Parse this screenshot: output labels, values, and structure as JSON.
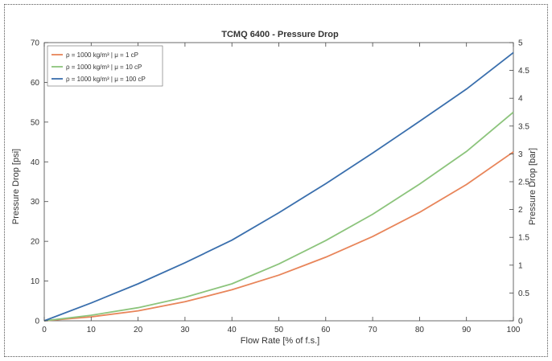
{
  "chart_data": {
    "type": "line",
    "title": "TCMQ 6400 - Pressure Drop",
    "xlabel": "Flow Rate [% of f.s.]",
    "ylabel": "Pressure Drop [psi]",
    "ylabel_right": "Pressure Drop [bar]",
    "xlim": [
      0,
      100
    ],
    "ylim": [
      0,
      70
    ],
    "ylim_right": [
      0,
      5
    ],
    "x_ticks": [
      "0",
      "10",
      "20",
      "30",
      "40",
      "50",
      "60",
      "70",
      "80",
      "90",
      "100"
    ],
    "y_ticks": [
      "0",
      "10",
      "20",
      "30",
      "40",
      "50",
      "60",
      "70"
    ],
    "y_ticks_right": [
      "0",
      "0.5",
      "1",
      "1.5",
      "2",
      "2.5",
      "3",
      "3.5",
      "4",
      "4.5",
      "5"
    ],
    "legend_position": "top-left",
    "x": [
      0,
      10,
      20,
      30,
      40,
      50,
      60,
      70,
      80,
      90,
      100
    ],
    "series": [
      {
        "name": "ρ = 1000 kg/m³ | μ = 1 cP",
        "color": "#e8855a",
        "values": [
          0,
          1,
          2.5,
          4.8,
          7.8,
          11.5,
          16,
          21.2,
          27.3,
          34.3,
          42.5
        ]
      },
      {
        "name": "ρ = 1000 kg/m³ | μ = 10 cP",
        "color": "#8cc47c",
        "values": [
          0,
          1.4,
          3.3,
          5.9,
          9.3,
          14.3,
          20.2,
          26.8,
          34.4,
          42.6,
          52.5
        ]
      },
      {
        "name": "ρ = 1000 kg/m³ | μ = 100 cP",
        "color": "#3a6fad",
        "values": [
          0,
          4.5,
          9.3,
          14.6,
          20.3,
          27.2,
          34.5,
          42.2,
          50.2,
          58.3,
          67.5
        ]
      }
    ]
  }
}
